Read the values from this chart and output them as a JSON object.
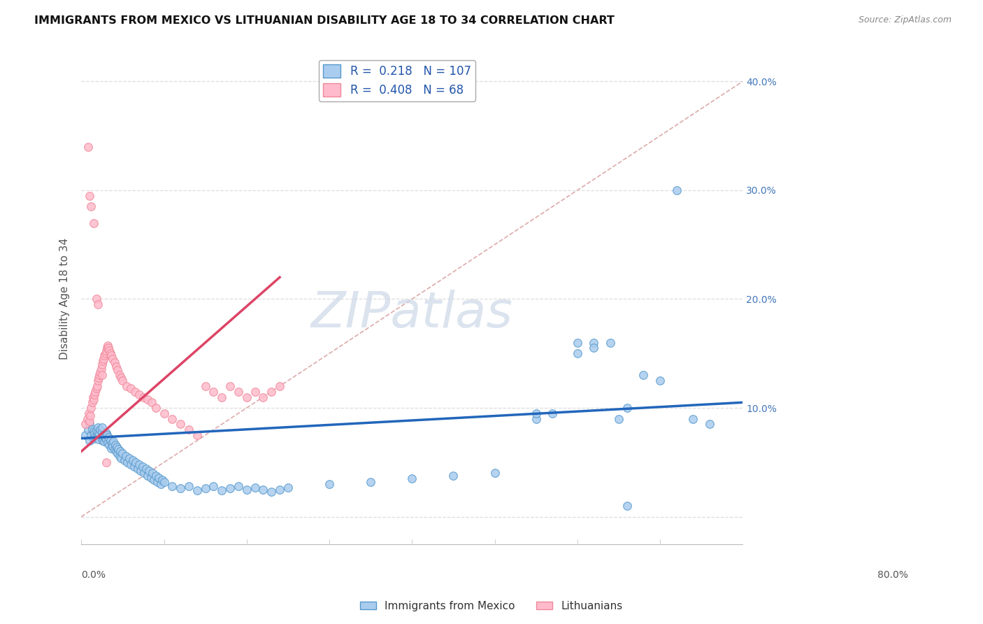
{
  "title": "IMMIGRANTS FROM MEXICO VS LITHUANIAN DISABILITY AGE 18 TO 34 CORRELATION CHART",
  "source": "Source: ZipAtlas.com",
  "ylabel": "Disability Age 18 to 34",
  "ytick_vals": [
    0.0,
    0.1,
    0.2,
    0.3,
    0.4
  ],
  "ytick_labels": [
    "",
    "10.0%",
    "20.0%",
    "30.0%",
    "40.0%"
  ],
  "xlim": [
    0.0,
    0.8
  ],
  "ylim": [
    -0.025,
    0.425
  ],
  "legend1_R": "0.218",
  "legend1_N": "107",
  "legend2_R": "0.408",
  "legend2_N": "68",
  "diag_line_color": "#ddaaaa",
  "mexico_face": "#aaccee",
  "mexico_edge": "#5599cc",
  "lith_face": "#ffbbcc",
  "lith_edge": "#ee8899",
  "mexico_line_color": "#2266bb",
  "lith_line_color": "#dd4466",
  "watermark_color": "#ccd8e8",
  "grid_color": "#dddddd",
  "mexico_x": [
    0.005,
    0.008,
    0.01,
    0.01,
    0.012,
    0.013,
    0.015,
    0.015,
    0.016,
    0.017,
    0.018,
    0.019,
    0.02,
    0.02,
    0.021,
    0.022,
    0.023,
    0.024,
    0.025,
    0.025,
    0.026,
    0.027,
    0.028,
    0.028,
    0.029,
    0.03,
    0.03,
    0.031,
    0.032,
    0.033,
    0.034,
    0.035,
    0.036,
    0.037,
    0.038,
    0.039,
    0.04,
    0.041,
    0.042,
    0.043,
    0.044,
    0.045,
    0.046,
    0.047,
    0.048,
    0.05,
    0.052,
    0.054,
    0.056,
    0.058,
    0.06,
    0.062,
    0.064,
    0.066,
    0.068,
    0.07,
    0.072,
    0.074,
    0.076,
    0.078,
    0.08,
    0.082,
    0.084,
    0.086,
    0.088,
    0.09,
    0.092,
    0.094,
    0.096,
    0.098,
    0.1,
    0.11,
    0.12,
    0.13,
    0.14,
    0.15,
    0.16,
    0.17,
    0.18,
    0.19,
    0.2,
    0.21,
    0.22,
    0.23,
    0.24,
    0.25,
    0.3,
    0.35,
    0.4,
    0.45,
    0.5,
    0.55,
    0.55,
    0.57,
    0.6,
    0.62,
    0.65,
    0.66,
    0.68,
    0.7,
    0.72,
    0.74,
    0.76,
    0.6,
    0.62,
    0.64,
    0.66
  ],
  "mexico_y": [
    0.075,
    0.08,
    0.085,
    0.07,
    0.075,
    0.08,
    0.072,
    0.078,
    0.076,
    0.073,
    0.079,
    0.074,
    0.082,
    0.077,
    0.071,
    0.076,
    0.08,
    0.073,
    0.078,
    0.082,
    0.07,
    0.075,
    0.069,
    0.074,
    0.072,
    0.077,
    0.071,
    0.075,
    0.068,
    0.073,
    0.066,
    0.07,
    0.063,
    0.067,
    0.065,
    0.069,
    0.062,
    0.066,
    0.06,
    0.064,
    0.058,
    0.062,
    0.056,
    0.06,
    0.054,
    0.058,
    0.052,
    0.056,
    0.05,
    0.054,
    0.048,
    0.052,
    0.046,
    0.05,
    0.044,
    0.048,
    0.042,
    0.046,
    0.04,
    0.044,
    0.038,
    0.042,
    0.036,
    0.04,
    0.034,
    0.038,
    0.032,
    0.036,
    0.03,
    0.034,
    0.032,
    0.028,
    0.026,
    0.028,
    0.024,
    0.026,
    0.028,
    0.024,
    0.026,
    0.028,
    0.025,
    0.027,
    0.025,
    0.023,
    0.025,
    0.027,
    0.03,
    0.032,
    0.035,
    0.038,
    0.04,
    0.09,
    0.095,
    0.095,
    0.16,
    0.16,
    0.09,
    0.1,
    0.13,
    0.125,
    0.3,
    0.09,
    0.085,
    0.15,
    0.155,
    0.16,
    0.01
  ],
  "lith_x": [
    0.005,
    0.007,
    0.009,
    0.01,
    0.011,
    0.012,
    0.013,
    0.014,
    0.015,
    0.016,
    0.017,
    0.018,
    0.019,
    0.02,
    0.021,
    0.022,
    0.023,
    0.024,
    0.025,
    0.026,
    0.027,
    0.028,
    0.029,
    0.03,
    0.031,
    0.032,
    0.033,
    0.034,
    0.035,
    0.036,
    0.038,
    0.04,
    0.042,
    0.044,
    0.046,
    0.048,
    0.05,
    0.055,
    0.06,
    0.065,
    0.07,
    0.075,
    0.08,
    0.085,
    0.09,
    0.1,
    0.11,
    0.12,
    0.13,
    0.14,
    0.15,
    0.16,
    0.17,
    0.18,
    0.19,
    0.2,
    0.21,
    0.22,
    0.23,
    0.24,
    0.008,
    0.01,
    0.012,
    0.015,
    0.018,
    0.02,
    0.025,
    0.03
  ],
  "lith_y": [
    0.085,
    0.09,
    0.095,
    0.088,
    0.093,
    0.1,
    0.105,
    0.11,
    0.108,
    0.112,
    0.115,
    0.118,
    0.12,
    0.125,
    0.128,
    0.13,
    0.133,
    0.136,
    0.14,
    0.143,
    0.145,
    0.148,
    0.15,
    0.152,
    0.155,
    0.157,
    0.155,
    0.153,
    0.15,
    0.148,
    0.145,
    0.142,
    0.138,
    0.135,
    0.13,
    0.128,
    0.125,
    0.12,
    0.118,
    0.115,
    0.112,
    0.11,
    0.108,
    0.105,
    0.1,
    0.095,
    0.09,
    0.085,
    0.08,
    0.075,
    0.12,
    0.115,
    0.11,
    0.12,
    0.115,
    0.11,
    0.115,
    0.11,
    0.115,
    0.12,
    0.34,
    0.295,
    0.285,
    0.27,
    0.2,
    0.195,
    0.13,
    0.05
  ]
}
